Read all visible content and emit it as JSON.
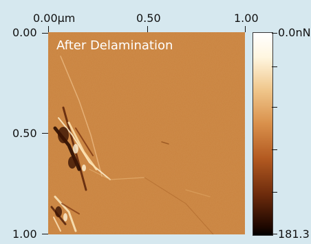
{
  "image": {
    "title": "After Delamination",
    "x_ticks": [
      "0.00µm",
      "0.50",
      "1.00"
    ],
    "y_ticks": [
      "0.00",
      "0.50",
      "1.00"
    ],
    "colorbar": {
      "top_label": "0.0nN",
      "bottom_label": "181.3"
    },
    "colors": {
      "background": "#d6e8ef",
      "image_base": "#c9823e",
      "title": "#ffffff"
    }
  }
}
